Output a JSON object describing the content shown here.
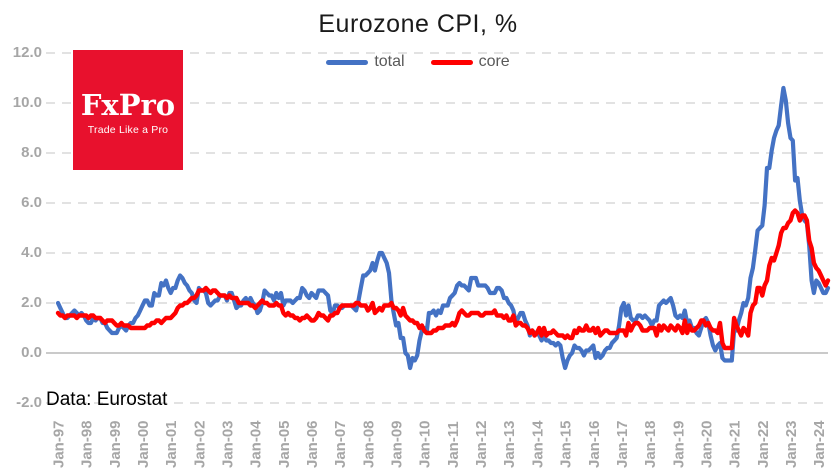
{
  "title": "Eurozone CPI, %",
  "source_note": "Data: Eurostat",
  "logo": {
    "name": "FxPro",
    "tagline": "Trade Like a Pro",
    "bg_color": "#E8112D",
    "text_color": "#ffffff"
  },
  "legend": {
    "items": [
      {
        "label": "total",
        "color": "#4472C4"
      },
      {
        "label": "core",
        "color": "#FF0000"
      }
    ]
  },
  "colors": {
    "total_line": "#4472C4",
    "core_line": "#FF0000",
    "grid": "#d9d9d9",
    "zero_line": "#c3c3c3",
    "tick_text": "#a6a6a6",
    "title_text": "#1a1a1a"
  },
  "chart_data": {
    "type": "line",
    "title": "Eurozone CPI, %",
    "xlabel": "",
    "ylabel": "",
    "x_start": "Jan-97",
    "x_end": "May-24",
    "x_interval": "monthly",
    "x_tick_labels": [
      "Jan-97",
      "Jan-98",
      "Jan-99",
      "Jan-00",
      "Jan-01",
      "Jan-02",
      "Jan-03",
      "Jan-04",
      "Jan-05",
      "Jan-06",
      "Jan-07",
      "Jan-08",
      "Jan-09",
      "Jan-10",
      "Jan-11",
      "Jan-12",
      "Jan-13",
      "Jan-14",
      "Jan-15",
      "Jan-16",
      "Jan-17",
      "Jan-18",
      "Jan-19",
      "Jan-20",
      "Jan-21",
      "Jan-22",
      "Jan-23",
      "Jan-24"
    ],
    "ylim": [
      -2,
      12
    ],
    "y_ticks": [
      12,
      10,
      8,
      6,
      4,
      2,
      0,
      -2
    ],
    "y_tick_labels": [
      "12.0",
      "10.0",
      "8.0",
      "6.0",
      "4.0",
      "2.0",
      "0.0",
      "-2.0"
    ],
    "grid": "horizontal-dashed, solid-zero-line",
    "legend_position": "top-center",
    "series": [
      {
        "name": "total",
        "color": "#4472C4",
        "stroke_width": 4.2,
        "values": [
          2.0,
          1.8,
          1.6,
          1.4,
          1.4,
          1.5,
          1.6,
          1.7,
          1.6,
          1.5,
          1.6,
          1.5,
          1.3,
          1.2,
          1.2,
          1.4,
          1.3,
          1.4,
          1.4,
          1.2,
          1.2,
          1.0,
          0.9,
          0.8,
          0.8,
          0.8,
          1.0,
          1.1,
          1.0,
          0.9,
          1.1,
          1.2,
          1.2,
          1.4,
          1.5,
          1.7,
          1.9,
          2.1,
          2.1,
          1.9,
          1.9,
          2.4,
          2.3,
          2.3,
          2.8,
          2.7,
          2.9,
          2.6,
          2.4,
          2.6,
          2.6,
          2.9,
          3.1,
          3.0,
          2.8,
          2.7,
          2.5,
          2.4,
          2.1,
          2.0,
          2.6,
          2.5,
          2.5,
          2.4,
          2.0,
          1.9,
          2.0,
          2.1,
          2.1,
          2.3,
          2.3,
          2.3,
          2.1,
          2.4,
          2.4,
          2.1,
          1.8,
          1.9,
          1.9,
          2.1,
          2.2,
          2.0,
          2.2,
          2.0,
          1.9,
          1.6,
          1.7,
          2.0,
          2.5,
          2.4,
          2.3,
          2.3,
          2.1,
          2.4,
          2.2,
          2.4,
          1.9,
          2.1,
          2.1,
          2.1,
          2.0,
          2.1,
          2.2,
          2.2,
          2.6,
          2.5,
          2.3,
          2.2,
          2.4,
          2.3,
          2.2,
          2.5,
          2.5,
          2.5,
          2.4,
          2.3,
          1.7,
          1.6,
          1.9,
          1.9,
          1.8,
          1.8,
          1.9,
          1.9,
          1.9,
          1.9,
          1.8,
          1.7,
          2.1,
          2.6,
          3.1,
          3.1,
          3.2,
          3.3,
          3.6,
          3.3,
          3.7,
          4.0,
          4.0,
          3.8,
          3.6,
          3.2,
          2.1,
          1.6,
          1.1,
          1.2,
          0.6,
          0.6,
          0.0,
          -0.1,
          -0.6,
          -0.2,
          -0.3,
          -0.1,
          0.5,
          0.9,
          1.0,
          0.8,
          1.6,
          1.6,
          1.7,
          1.5,
          1.7,
          1.6,
          1.9,
          1.9,
          1.9,
          2.2,
          2.3,
          2.4,
          2.7,
          2.8,
          2.7,
          2.7,
          2.6,
          2.5,
          3.0,
          3.0,
          3.0,
          2.7,
          2.7,
          2.7,
          2.7,
          2.6,
          2.4,
          2.4,
          2.4,
          2.6,
          2.6,
          2.5,
          2.2,
          2.2,
          2.0,
          1.9,
          1.7,
          1.2,
          1.4,
          1.6,
          1.6,
          1.3,
          1.1,
          0.7,
          0.9,
          0.8,
          0.8,
          0.7,
          0.5,
          0.7,
          0.5,
          0.5,
          0.4,
          0.4,
          0.3,
          0.4,
          0.3,
          -0.2,
          -0.6,
          -0.3,
          -0.1,
          0.0,
          0.3,
          0.2,
          0.2,
          0.1,
          -0.1,
          0.1,
          0.1,
          0.2,
          0.3,
          -0.2,
          0.0,
          -0.2,
          -0.1,
          0.1,
          0.2,
          0.2,
          0.4,
          0.5,
          0.6,
          1.1,
          1.8,
          2.0,
          1.5,
          1.9,
          1.4,
          1.3,
          1.3,
          1.5,
          1.5,
          1.4,
          1.5,
          1.4,
          1.3,
          1.1,
          1.3,
          1.3,
          1.9,
          2.0,
          2.1,
          2.0,
          2.1,
          2.2,
          1.9,
          1.5,
          1.4,
          1.5,
          1.4,
          1.7,
          1.2,
          1.3,
          1.0,
          1.0,
          0.8,
          0.7,
          1.0,
          1.3,
          1.4,
          1.2,
          0.7,
          0.3,
          0.1,
          0.3,
          0.4,
          -0.2,
          -0.3,
          -0.3,
          -0.3,
          -0.3,
          0.9,
          0.9,
          1.3,
          1.6,
          2.0,
          1.9,
          2.2,
          3.0,
          3.4,
          4.1,
          4.9,
          5.0,
          5.1,
          5.9,
          7.4,
          7.4,
          8.1,
          8.6,
          8.9,
          9.1,
          9.9,
          10.6,
          10.1,
          9.2,
          8.6,
          8.5,
          6.9,
          7.0,
          6.1,
          5.5,
          5.3,
          5.2,
          4.3,
          2.9,
          2.4,
          2.9,
          2.8,
          2.6,
          2.4,
          2.4,
          2.6
        ]
      },
      {
        "name": "core",
        "color": "#FF0000",
        "stroke_width": 4.4,
        "values": [
          1.6,
          1.5,
          1.5,
          1.4,
          1.5,
          1.5,
          1.5,
          1.5,
          1.4,
          1.5,
          1.5,
          1.5,
          1.5,
          1.4,
          1.5,
          1.5,
          1.4,
          1.4,
          1.4,
          1.3,
          1.2,
          1.3,
          1.3,
          1.3,
          1.2,
          1.1,
          1.1,
          1.2,
          1.1,
          1.1,
          1.1,
          1.0,
          1.0,
          1.0,
          1.0,
          1.0,
          1.0,
          1.0,
          1.1,
          1.1,
          1.2,
          1.2,
          1.3,
          1.3,
          1.2,
          1.3,
          1.4,
          1.4,
          1.4,
          1.5,
          1.6,
          1.8,
          1.9,
          1.9,
          2.0,
          2.0,
          2.1,
          2.2,
          2.2,
          2.3,
          2.5,
          2.5,
          2.5,
          2.6,
          2.5,
          2.4,
          2.5,
          2.5,
          2.4,
          2.3,
          2.3,
          2.3,
          2.2,
          2.3,
          2.2,
          2.2,
          2.2,
          2.0,
          2.0,
          2.0,
          2.0,
          2.0,
          1.9,
          1.9,
          1.8,
          1.9,
          2.0,
          2.1,
          2.0,
          2.0,
          1.9,
          1.9,
          1.9,
          2.0,
          1.9,
          1.9,
          1.6,
          1.5,
          1.6,
          1.5,
          1.5,
          1.4,
          1.4,
          1.3,
          1.4,
          1.4,
          1.5,
          1.4,
          1.3,
          1.3,
          1.4,
          1.6,
          1.5,
          1.5,
          1.4,
          1.3,
          1.5,
          1.5,
          1.6,
          1.6,
          1.8,
          1.9,
          1.9,
          1.9,
          1.9,
          1.9,
          1.9,
          2.0,
          2.0,
          1.9,
          1.9,
          1.9,
          1.7,
          1.8,
          2.0,
          1.6,
          1.7,
          1.8,
          1.7,
          1.9,
          1.9,
          1.9,
          2.0,
          1.8,
          1.8,
          1.7,
          1.5,
          1.8,
          1.5,
          1.4,
          1.3,
          1.3,
          1.2,
          1.2,
          1.0,
          1.1,
          0.9,
          0.8,
          0.8,
          0.8,
          0.9,
          0.9,
          1.0,
          1.0,
          1.0,
          1.1,
          1.1,
          1.1,
          1.2,
          1.1,
          1.3,
          1.6,
          1.7,
          1.6,
          1.5,
          1.5,
          1.6,
          1.6,
          1.6,
          1.6,
          1.5,
          1.5,
          1.6,
          1.6,
          1.6,
          1.6,
          1.7,
          1.5,
          1.5,
          1.5,
          1.4,
          1.5,
          1.3,
          1.3,
          1.5,
          1.1,
          1.2,
          1.2,
          1.1,
          1.1,
          1.0,
          0.8,
          0.9,
          0.7,
          0.8,
          1.0,
          0.7,
          1.0,
          0.7,
          0.8,
          0.8,
          0.9,
          0.8,
          0.7,
          0.7,
          0.7,
          0.6,
          0.7,
          0.6,
          0.6,
          0.9,
          0.8,
          1.0,
          0.9,
          0.9,
          1.1,
          0.9,
          0.9,
          1.0,
          0.8,
          1.0,
          0.7,
          0.8,
          0.9,
          0.9,
          0.8,
          0.8,
          0.8,
          0.8,
          0.9,
          0.9,
          0.9,
          0.7,
          1.2,
          0.9,
          1.1,
          1.2,
          1.2,
          1.1,
          0.9,
          0.9,
          0.9,
          1.0,
          1.0,
          1.0,
          0.7,
          1.1,
          0.9,
          1.1,
          1.0,
          0.9,
          1.1,
          1.0,
          0.9,
          1.1,
          1.0,
          0.8,
          1.3,
          0.8,
          1.1,
          0.9,
          0.9,
          1.0,
          1.1,
          1.3,
          1.3,
          1.1,
          1.2,
          1.0,
          0.9,
          0.9,
          0.8,
          1.2,
          0.4,
          0.2,
          0.2,
          0.2,
          0.2,
          1.4,
          1.1,
          0.9,
          0.7,
          1.0,
          0.9,
          0.7,
          1.6,
          1.9,
          2.0,
          2.6,
          2.6,
          2.3,
          2.7,
          2.9,
          3.5,
          3.8,
          3.7,
          4.0,
          4.3,
          4.8,
          5.0,
          5.0,
          5.2,
          5.3,
          5.6,
          5.7,
          5.6,
          5.3,
          5.5,
          5.5,
          5.3,
          4.5,
          4.2,
          3.6,
          3.4,
          3.3,
          3.1,
          2.9,
          2.7,
          2.9
        ]
      }
    ]
  }
}
